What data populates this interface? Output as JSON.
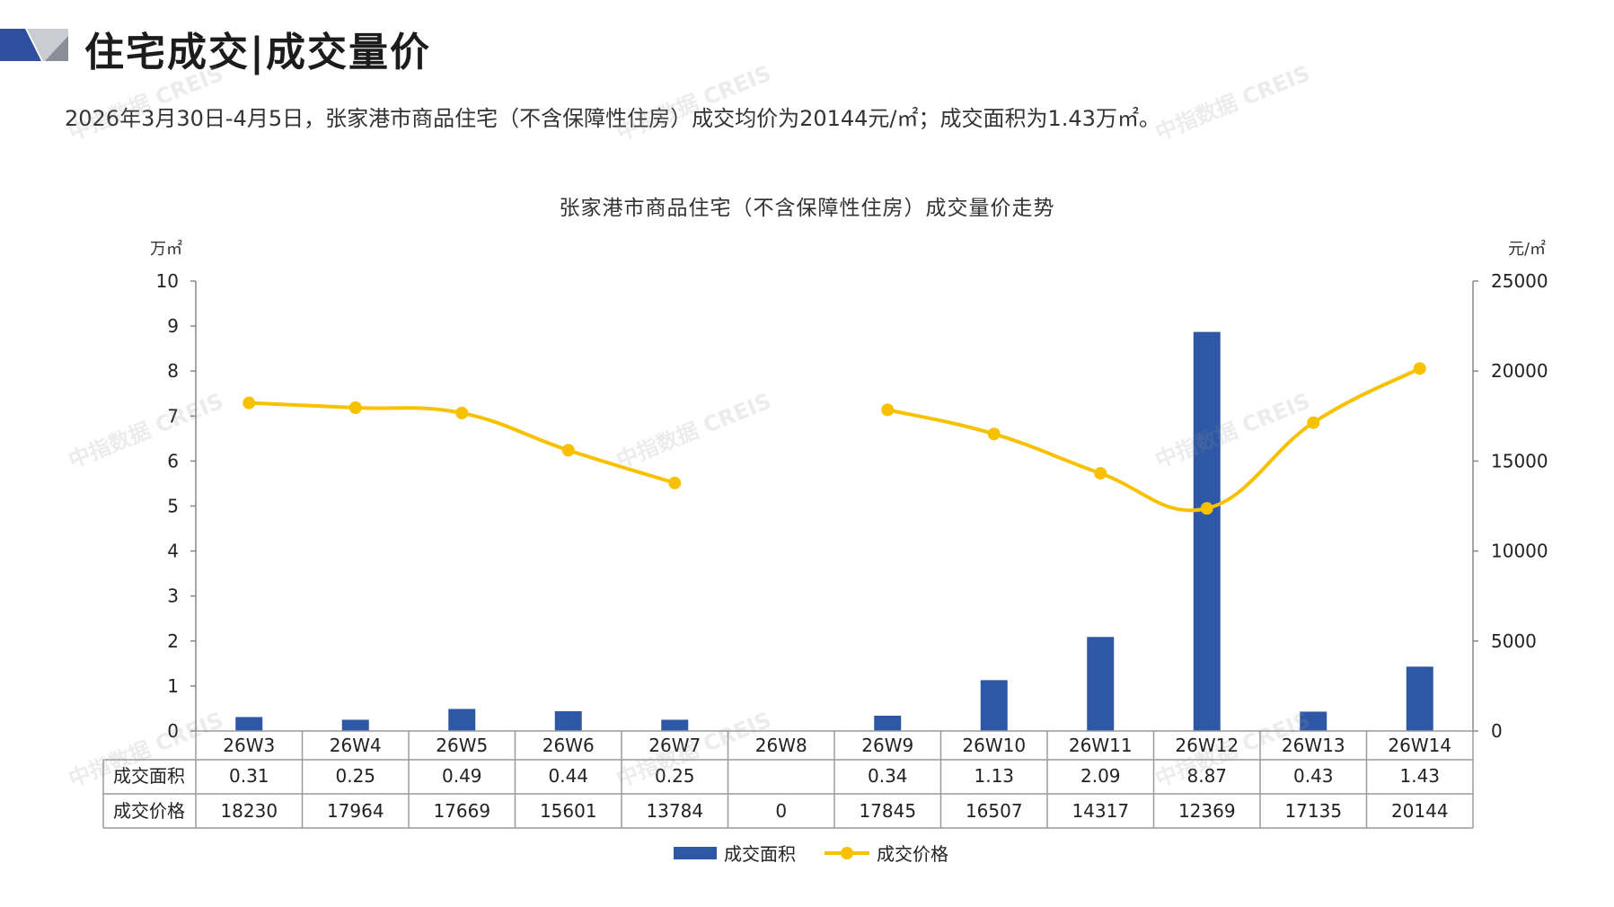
{
  "header": {
    "title": "住宅成交|成交量价",
    "summary": "2026年3月30日-4月5日，张家港市商品住宅（不含保障性住房）成交均价为20144元/㎡；成交面积为1.43万㎡。"
  },
  "watermark_text": "中指数据 CREIS",
  "colors": {
    "bar": "#2e58a6",
    "line": "#f7c100",
    "logo_blue": "#2f4fa0",
    "logo_gray": "#8a8e96"
  },
  "chart_data": {
    "type": "bar",
    "title": "张家港市商品住宅（不含保障性住房）成交量价走势",
    "categories": [
      "26W3",
      "26W4",
      "26W5",
      "26W6",
      "26W7",
      "26W8",
      "26W9",
      "26W10",
      "26W11",
      "26W12",
      "26W13",
      "26W14"
    ],
    "left_axis": {
      "unit": "万㎡",
      "min": 0,
      "max": 10,
      "ticks": [
        0,
        1,
        2,
        3,
        4,
        5,
        6,
        7,
        8,
        9,
        10
      ]
    },
    "right_axis": {
      "unit": "元/㎡",
      "min": 0,
      "max": 25000,
      "ticks": [
        0,
        5000,
        10000,
        15000,
        20000,
        25000
      ]
    },
    "series": [
      {
        "name": "成交面积",
        "type": "bar",
        "axis": "left",
        "values": [
          0.31,
          0.25,
          0.49,
          0.44,
          0.25,
          null,
          0.34,
          1.13,
          2.09,
          8.87,
          0.43,
          1.43
        ],
        "labels": [
          "0.31",
          "0.25",
          "0.49",
          "0.44",
          "0.25",
          "",
          "0.34",
          "1.13",
          "2.09",
          "8.87",
          "0.43",
          "1.43"
        ]
      },
      {
        "name": "成交价格",
        "type": "line",
        "axis": "right",
        "values": [
          18230,
          17964,
          17669,
          15601,
          13784,
          null,
          17845,
          16507,
          14317,
          12369,
          17135,
          20144
        ],
        "labels": [
          "18230",
          "17964",
          "17669",
          "15601",
          "13784",
          "0",
          "17845",
          "16507",
          "14317",
          "12369",
          "17135",
          "20144"
        ]
      }
    ],
    "legend": "bottom",
    "grid": false
  }
}
